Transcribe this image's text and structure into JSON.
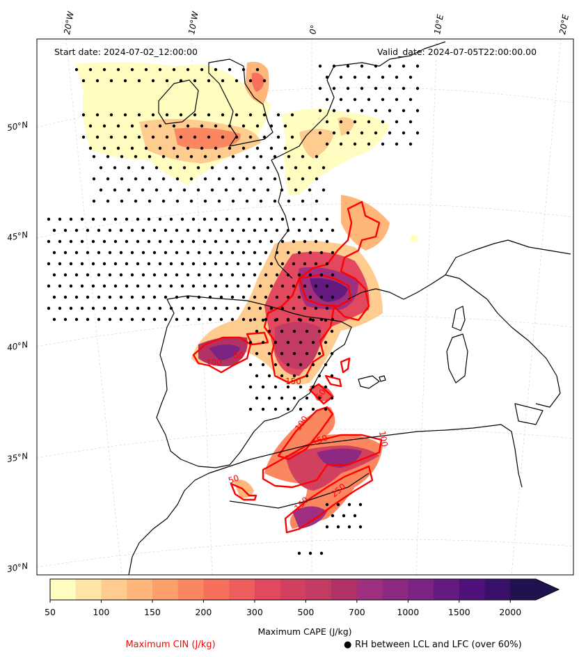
{
  "header": {
    "start_date": "Start date: 2024-07-02_12:00:00",
    "valid_date": "Valid_date: 2024-07-05T22:00:00.00"
  },
  "axes": {
    "lon_ticks": [
      "20°W",
      "10°W",
      "0°",
      "10°E",
      "20°E"
    ],
    "lat_ticks": [
      "50°N",
      "45°N",
      "40°N",
      "35°N",
      "30°N"
    ]
  },
  "colorbar": {
    "tick_labels": [
      "50",
      "100",
      "150",
      "200",
      "300",
      "500",
      "700",
      "1000",
      "1500",
      "2000"
    ],
    "colors": [
      "#fffdc0",
      "#fee4a6",
      "#fecc8e",
      "#feb67b",
      "#fd9f6b",
      "#fb8761",
      "#f6705c",
      "#ef5e5e",
      "#e2495f",
      "#d1415f",
      "#c13b63",
      "#b13366",
      "#9f2f7f",
      "#8c2981",
      "#7a2382",
      "#651a80",
      "#4f127b",
      "#38106a",
      "#21114e"
    ],
    "label": "Maximum CAPE (J/kg)"
  },
  "legend": {
    "cin_label": "Maximum CIN (J/kg)",
    "cin_color": "#ff0000",
    "rh_label": "RH between LCL and LFC (over 60%)",
    "rh_marker": "●"
  },
  "contour_labels": [
    "100",
    "50",
    "50",
    "100",
    "150",
    "150",
    "250",
    "100",
    "50",
    "150"
  ]
}
